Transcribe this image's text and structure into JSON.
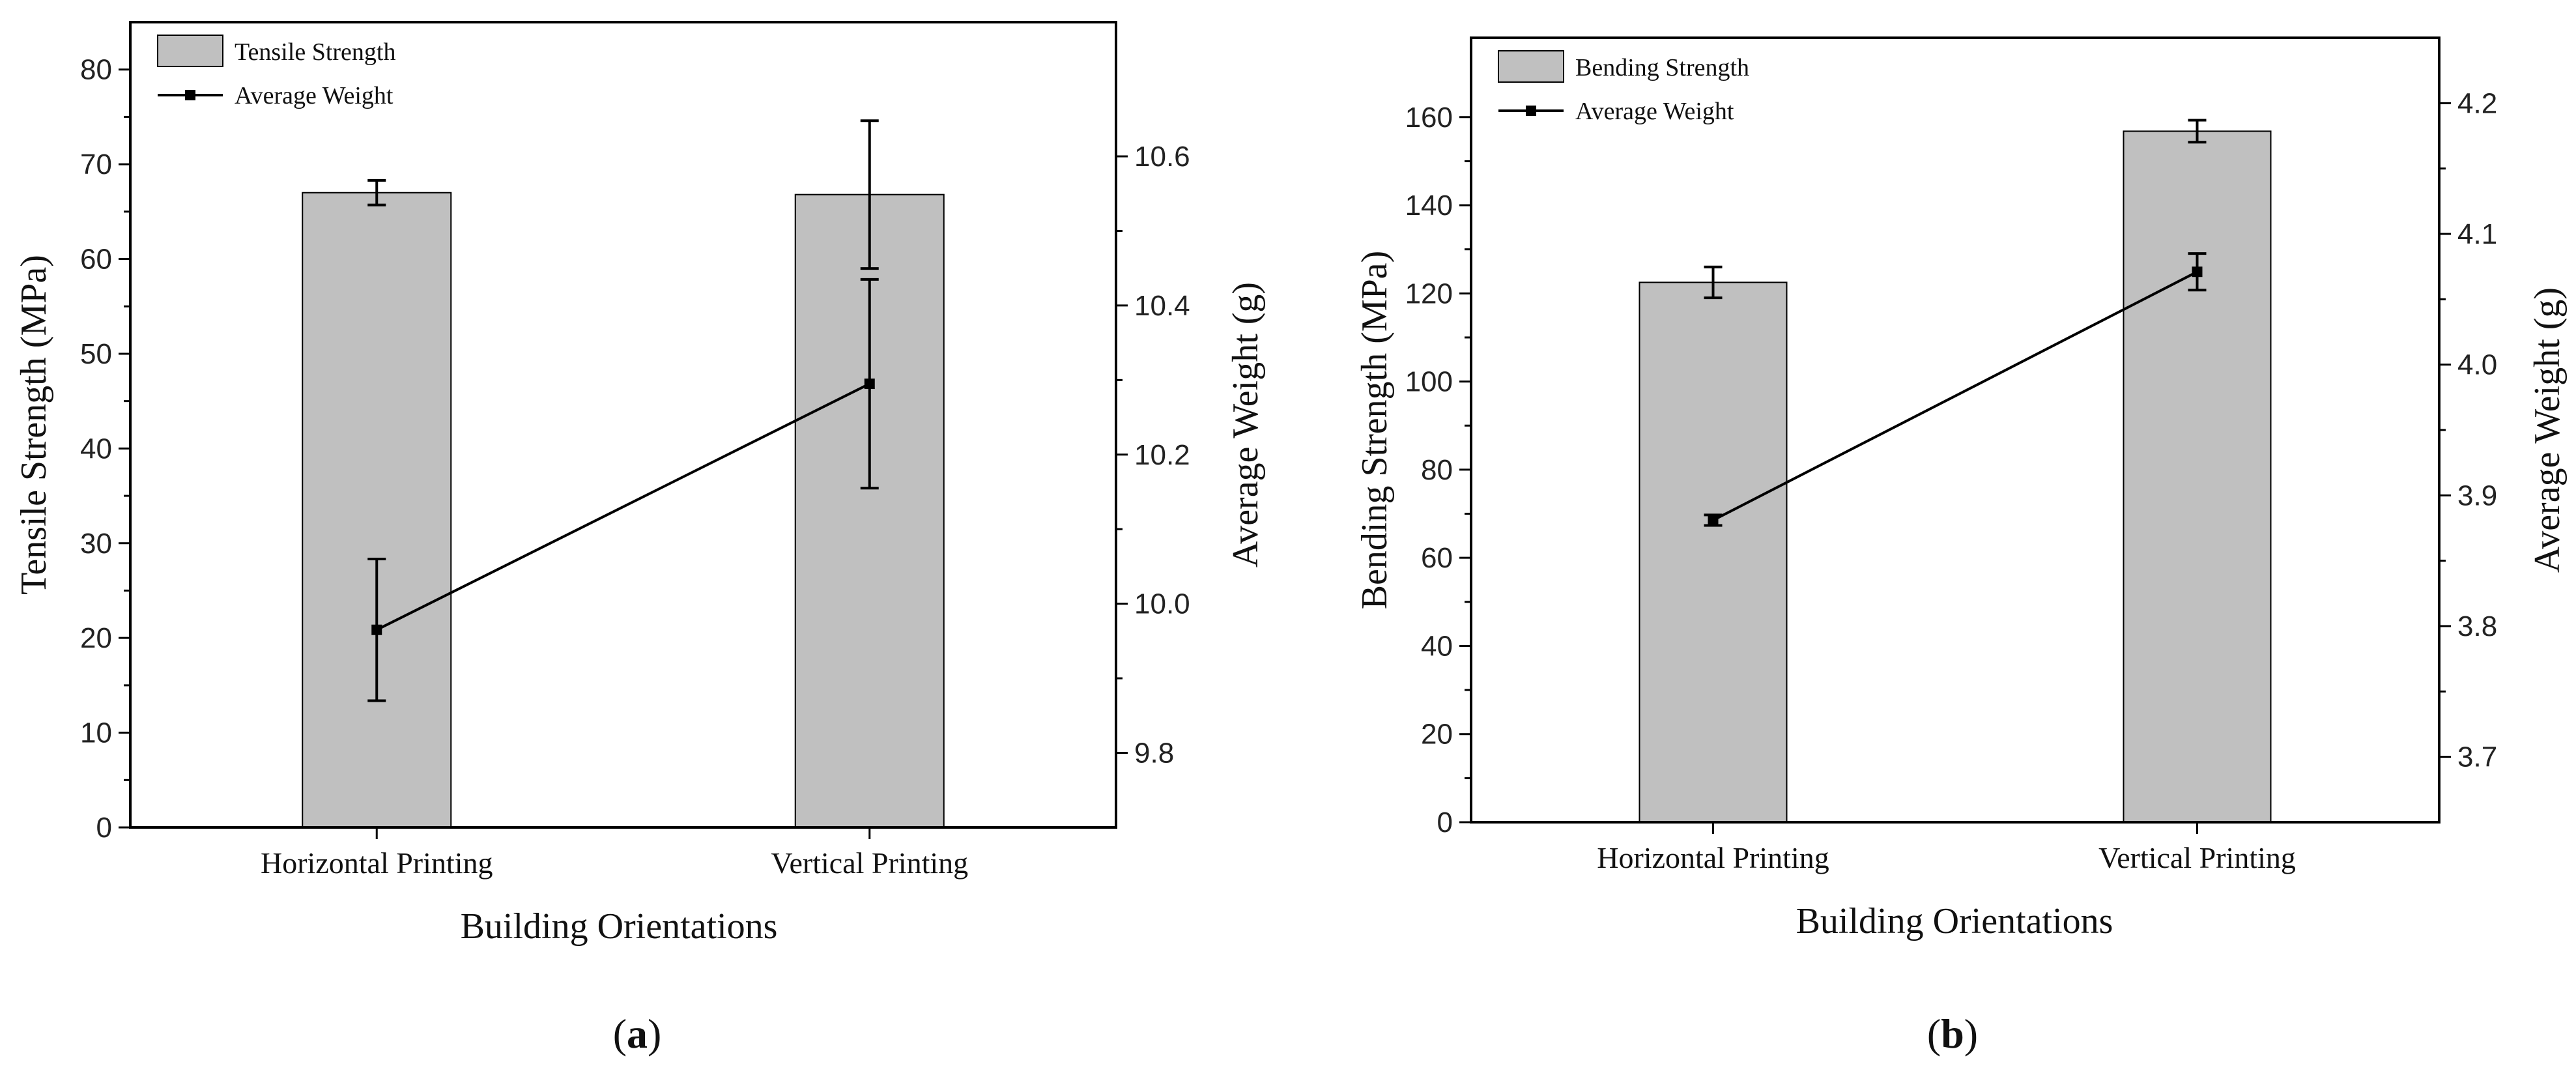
{
  "chart_data": [
    {
      "type": "bar",
      "panel_label": "a",
      "categories": [
        "Horizontal Printing",
        "Vertical Printing"
      ],
      "xlabel": "Building Orientations",
      "ylabel": "Tensile Strength (MPa)",
      "ylim": [
        0,
        85
      ],
      "yticks": [
        0,
        10,
        20,
        30,
        40,
        50,
        60,
        70,
        80
      ],
      "y2label": "Average Weight (g)",
      "y2lim": [
        9.7,
        10.78
      ],
      "y2ticks": [
        9.8,
        10.0,
        10.2,
        10.4,
        10.6
      ],
      "y2tick_labels": [
        "9.8",
        "10.0",
        "10.2",
        "10.4",
        "10.6"
      ],
      "legend_position": "top-left",
      "bar_series": {
        "name": "Tensile Strength",
        "values": [
          67.0,
          66.8
        ],
        "errors": [
          1.3,
          7.8
        ],
        "color": "#c0c0c0"
      },
      "line_series": {
        "name": "Average Weight",
        "values": [
          9.965,
          10.295
        ],
        "errors": [
          0.095,
          0.14
        ],
        "color": "#000000"
      }
    },
    {
      "type": "bar",
      "panel_label": "b",
      "categories": [
        "Horizontal Printing",
        "Vertical Printing"
      ],
      "xlabel": "Building Orientations",
      "ylabel": "Bending Strength (MPa)",
      "ylim": [
        0,
        178
      ],
      "yticks": [
        0,
        20,
        40,
        60,
        80,
        100,
        120,
        140,
        160
      ],
      "y2label": "Average Weight (g)",
      "y2lim": [
        3.65,
        4.25
      ],
      "y2ticks": [
        3.7,
        3.8,
        3.9,
        4.0,
        4.1,
        4.2
      ],
      "y2tick_labels": [
        "3.7",
        "3.8",
        "3.9",
        "4.0",
        "4.1",
        "4.2"
      ],
      "legend_position": "top-left",
      "bar_series": {
        "name": "Bending Strength",
        "values": [
          122.5,
          156.8
        ],
        "errors": [
          3.5,
          2.5
        ],
        "color": "#c0c0c0"
      },
      "line_series": {
        "name": "Average Weight",
        "values": [
          3.881,
          4.071
        ],
        "errors": [
          0.004,
          0.014
        ],
        "color": "#000000"
      }
    }
  ]
}
